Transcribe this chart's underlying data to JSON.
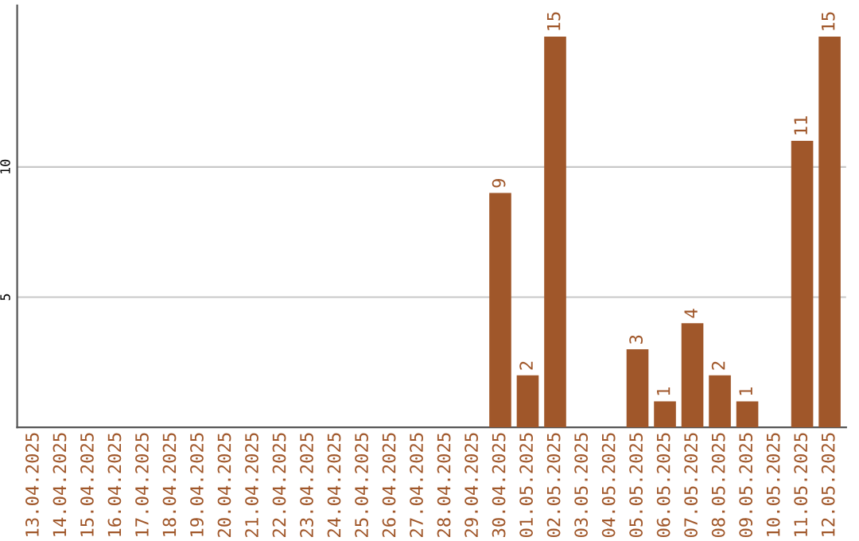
{
  "chart_data": {
    "type": "bar",
    "categories": [
      "13.04.2025",
      "14.04.2025",
      "15.04.2025",
      "16.04.2025",
      "17.04.2025",
      "18.04.2025",
      "19.04.2025",
      "20.04.2025",
      "21.04.2025",
      "22.04.2025",
      "23.04.2025",
      "24.04.2025",
      "25.04.2025",
      "26.04.2025",
      "27.04.2025",
      "28.04.2025",
      "29.04.2025",
      "30.04.2025",
      "01.05.2025",
      "02.05.2025",
      "03.05.2025",
      "04.05.2025",
      "05.05.2025",
      "06.05.2025",
      "07.05.2025",
      "08.05.2025",
      "09.05.2025",
      "10.05.2025",
      "11.05.2025",
      "12.05.2025"
    ],
    "values": [
      0,
      0,
      0,
      0,
      0,
      0,
      0,
      0,
      0,
      0,
      0,
      0,
      0,
      0,
      0,
      0,
      0,
      9,
      2,
      15,
      0,
      0,
      3,
      1,
      4,
      2,
      1,
      0,
      11,
      15
    ],
    "value_labels": [
      null,
      null,
      null,
      null,
      null,
      null,
      null,
      null,
      null,
      null,
      null,
      null,
      null,
      null,
      null,
      null,
      null,
      "9",
      "2",
      "15",
      null,
      null,
      "3",
      "1",
      "4",
      "2",
      "1",
      null,
      "11",
      "15"
    ],
    "color": "#a0572a",
    "ylim": [
      0,
      16.2
    ],
    "yticks": [
      5,
      10
    ],
    "grid": "y"
  }
}
